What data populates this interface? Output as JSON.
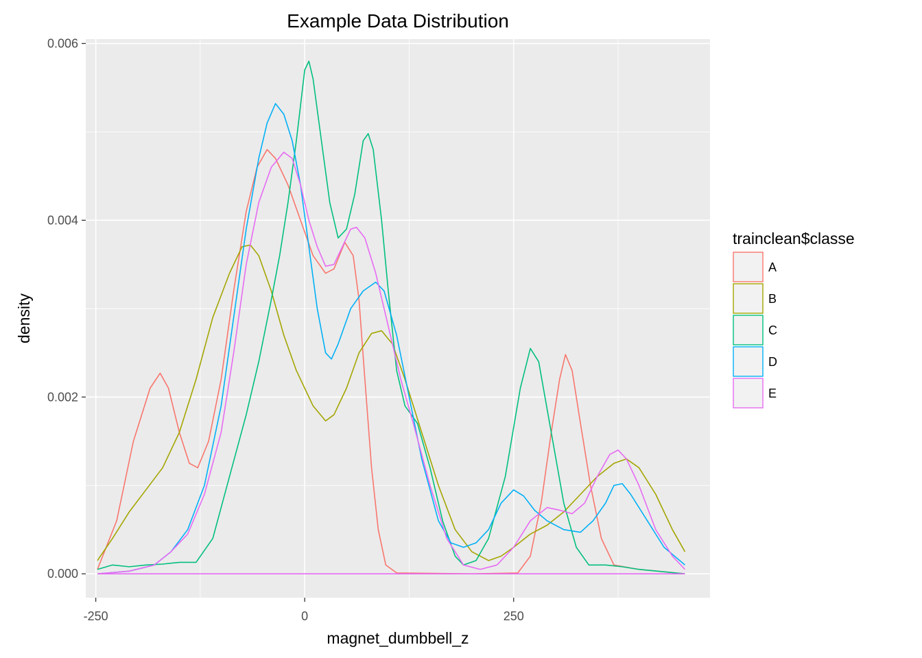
{
  "chart_data": {
    "type": "line",
    "title": "Example Data Distribution",
    "xlabel": "magnet_dumbbell_z",
    "ylabel": "density",
    "xlim": [
      -262,
      485
    ],
    "ylim": [
      -0.00027,
      0.00605
    ],
    "x_ticks": [
      -250,
      0,
      250
    ],
    "x_tick_labels": [
      "-250",
      "0",
      "250"
    ],
    "y_ticks": [
      0.0,
      0.002,
      0.004,
      0.006
    ],
    "y_tick_labels": [
      "0.000",
      "0.002",
      "0.004",
      "0.006"
    ],
    "grid": true,
    "legend": {
      "title": "trainclean$classe",
      "placement": "right"
    },
    "series": [
      {
        "name": "A",
        "color": "#F8766D",
        "points": [
          [
            -248,
            5e-05
          ],
          [
            -225,
            0.0006
          ],
          [
            -205,
            0.0015
          ],
          [
            -185,
            0.0021
          ],
          [
            -173,
            0.00227
          ],
          [
            -163,
            0.0021
          ],
          [
            -150,
            0.0016
          ],
          [
            -138,
            0.00125
          ],
          [
            -128,
            0.0012
          ],
          [
            -115,
            0.0015
          ],
          [
            -100,
            0.0022
          ],
          [
            -85,
            0.0032
          ],
          [
            -70,
            0.0041
          ],
          [
            -57,
            0.0046
          ],
          [
            -45,
            0.0048
          ],
          [
            -35,
            0.0047
          ],
          [
            -20,
            0.0044
          ],
          [
            -5,
            0.004
          ],
          [
            10,
            0.0036
          ],
          [
            25,
            0.0034
          ],
          [
            35,
            0.00345
          ],
          [
            48,
            0.00375
          ],
          [
            58,
            0.0036
          ],
          [
            65,
            0.0031
          ],
          [
            72,
            0.0022
          ],
          [
            80,
            0.0012
          ],
          [
            88,
            0.0005
          ],
          [
            97,
            0.0001
          ],
          [
            110,
            1e-05
          ],
          [
            200,
            0.0
          ],
          [
            255,
            1e-05
          ],
          [
            270,
            0.0002
          ],
          [
            283,
            0.0008
          ],
          [
            295,
            0.0016
          ],
          [
            305,
            0.0022
          ],
          [
            312,
            0.00248
          ],
          [
            320,
            0.0023
          ],
          [
            330,
            0.0017
          ],
          [
            342,
            0.001
          ],
          [
            355,
            0.0004
          ],
          [
            370,
            0.0001
          ],
          [
            400,
            5e-05
          ],
          [
            455,
            0.0
          ]
        ]
      },
      {
        "name": "B",
        "color": "#A3A500",
        "points": [
          [
            -248,
            0.00015
          ],
          [
            -230,
            0.0004
          ],
          [
            -210,
            0.0007
          ],
          [
            -190,
            0.00095
          ],
          [
            -170,
            0.0012
          ],
          [
            -150,
            0.0016
          ],
          [
            -130,
            0.0022
          ],
          [
            -110,
            0.0029
          ],
          [
            -90,
            0.0034
          ],
          [
            -75,
            0.0037
          ],
          [
            -65,
            0.00372
          ],
          [
            -55,
            0.0036
          ],
          [
            -40,
            0.0032
          ],
          [
            -25,
            0.0027
          ],
          [
            -10,
            0.0023
          ],
          [
            0,
            0.0021
          ],
          [
            10,
            0.0019
          ],
          [
            25,
            0.00173
          ],
          [
            35,
            0.0018
          ],
          [
            50,
            0.0021
          ],
          [
            65,
            0.0025
          ],
          [
            80,
            0.00272
          ],
          [
            92,
            0.00275
          ],
          [
            105,
            0.0026
          ],
          [
            120,
            0.0022
          ],
          [
            140,
            0.0016
          ],
          [
            160,
            0.001
          ],
          [
            180,
            0.0005
          ],
          [
            200,
            0.00025
          ],
          [
            220,
            0.00015
          ],
          [
            235,
            0.0002
          ],
          [
            250,
            0.0003
          ],
          [
            270,
            0.00045
          ],
          [
            290,
            0.00055
          ],
          [
            310,
            0.0007
          ],
          [
            330,
            0.0009
          ],
          [
            350,
            0.0011
          ],
          [
            370,
            0.00125
          ],
          [
            385,
            0.0013
          ],
          [
            400,
            0.0012
          ],
          [
            420,
            0.0009
          ],
          [
            440,
            0.0005
          ],
          [
            455,
            0.00025
          ]
        ]
      },
      {
        "name": "C",
        "color": "#00BF7D",
        "points": [
          [
            -248,
            5e-05
          ],
          [
            -230,
            0.0001
          ],
          [
            -210,
            8e-05
          ],
          [
            -190,
            0.0001
          ],
          [
            -170,
            0.00011
          ],
          [
            -150,
            0.00013
          ],
          [
            -130,
            0.00013
          ],
          [
            -110,
            0.0004
          ],
          [
            -90,
            0.0011
          ],
          [
            -70,
            0.0018
          ],
          [
            -55,
            0.0024
          ],
          [
            -40,
            0.0031
          ],
          [
            -30,
            0.0036
          ],
          [
            -20,
            0.0042
          ],
          [
            -10,
            0.0049
          ],
          [
            0,
            0.0057
          ],
          [
            5,
            0.0058
          ],
          [
            10,
            0.0056
          ],
          [
            20,
            0.0049
          ],
          [
            30,
            0.0042
          ],
          [
            40,
            0.0038
          ],
          [
            50,
            0.0039
          ],
          [
            60,
            0.0043
          ],
          [
            70,
            0.0049
          ],
          [
            76,
            0.00498
          ],
          [
            82,
            0.0048
          ],
          [
            92,
            0.004
          ],
          [
            100,
            0.0032
          ],
          [
            110,
            0.0023
          ],
          [
            120,
            0.0019
          ],
          [
            135,
            0.0017
          ],
          [
            150,
            0.0012
          ],
          [
            165,
            0.0006
          ],
          [
            180,
            0.0002
          ],
          [
            190,
            0.0001
          ],
          [
            205,
            0.00015
          ],
          [
            220,
            0.0004
          ],
          [
            240,
            0.0011
          ],
          [
            258,
            0.0021
          ],
          [
            270,
            0.00255
          ],
          [
            280,
            0.0024
          ],
          [
            295,
            0.0016
          ],
          [
            310,
            0.0008
          ],
          [
            325,
            0.0003
          ],
          [
            340,
            0.0001
          ],
          [
            360,
            0.0001
          ],
          [
            380,
            8e-05
          ],
          [
            400,
            5e-05
          ],
          [
            455,
            0.0
          ]
        ]
      },
      {
        "name": "D",
        "color": "#00B0F6",
        "points": [
          [
            -248,
            0.0
          ],
          [
            -210,
            3e-05
          ],
          [
            -180,
            0.0001
          ],
          [
            -160,
            0.00025
          ],
          [
            -140,
            0.0005
          ],
          [
            -120,
            0.001
          ],
          [
            -100,
            0.0019
          ],
          [
            -85,
            0.0029
          ],
          [
            -70,
            0.0039
          ],
          [
            -55,
            0.0047
          ],
          [
            -45,
            0.0051
          ],
          [
            -35,
            0.00532
          ],
          [
            -25,
            0.0052
          ],
          [
            -15,
            0.0049
          ],
          [
            -5,
            0.0044
          ],
          [
            5,
            0.0037
          ],
          [
            15,
            0.003
          ],
          [
            25,
            0.0025
          ],
          [
            32,
            0.00243
          ],
          [
            40,
            0.0026
          ],
          [
            55,
            0.003
          ],
          [
            70,
            0.0032
          ],
          [
            85,
            0.0033
          ],
          [
            95,
            0.0032
          ],
          [
            110,
            0.0027
          ],
          [
            125,
            0.002
          ],
          [
            140,
            0.0013
          ],
          [
            160,
            0.0006
          ],
          [
            175,
            0.00035
          ],
          [
            190,
            0.0003
          ],
          [
            205,
            0.00035
          ],
          [
            220,
            0.0005
          ],
          [
            235,
            0.0008
          ],
          [
            250,
            0.00095
          ],
          [
            262,
            0.00088
          ],
          [
            275,
            0.00072
          ],
          [
            290,
            0.0006
          ],
          [
            310,
            0.0005
          ],
          [
            330,
            0.00047
          ],
          [
            345,
            0.0006
          ],
          [
            360,
            0.0008
          ],
          [
            370,
            0.001
          ],
          [
            380,
            0.00102
          ],
          [
            390,
            0.0009
          ],
          [
            410,
            0.0006
          ],
          [
            430,
            0.0003
          ],
          [
            455,
            0.0001
          ]
        ]
      },
      {
        "name": "E",
        "color": "#E76BF3",
        "points": [
          [
            -248,
            0.0
          ],
          [
            -210,
            3e-05
          ],
          [
            -180,
            0.0001
          ],
          [
            -160,
            0.00025
          ],
          [
            -140,
            0.00045
          ],
          [
            -120,
            0.0009
          ],
          [
            -100,
            0.0016
          ],
          [
            -85,
            0.0025
          ],
          [
            -70,
            0.0035
          ],
          [
            -55,
            0.0042
          ],
          [
            -40,
            0.0046
          ],
          [
            -25,
            0.00477
          ],
          [
            -15,
            0.0047
          ],
          [
            -5,
            0.0044
          ],
          [
            5,
            0.004
          ],
          [
            15,
            0.0037
          ],
          [
            25,
            0.00348
          ],
          [
            35,
            0.0035
          ],
          [
            45,
            0.0037
          ],
          [
            55,
            0.0039
          ],
          [
            62,
            0.00392
          ],
          [
            72,
            0.0038
          ],
          [
            85,
            0.0034
          ],
          [
            100,
            0.0028
          ],
          [
            115,
            0.0022
          ],
          [
            130,
            0.0017
          ],
          [
            150,
            0.001
          ],
          [
            170,
            0.0004
          ],
          [
            190,
            0.0001
          ],
          [
            210,
            5e-05
          ],
          [
            230,
            0.0001
          ],
          [
            250,
            0.0003
          ],
          [
            270,
            0.0006
          ],
          [
            290,
            0.00075
          ],
          [
            305,
            0.00072
          ],
          [
            320,
            0.00068
          ],
          [
            335,
            0.0008
          ],
          [
            350,
            0.0011
          ],
          [
            365,
            0.00135
          ],
          [
            375,
            0.0014
          ],
          [
            385,
            0.0013
          ],
          [
            400,
            0.001
          ],
          [
            420,
            0.0005
          ],
          [
            440,
            0.0002
          ],
          [
            455,
            5e-05
          ]
        ]
      },
      {
        "name": "",
        "color": "#E76BF3",
        "note_baseline": true,
        "points": [
          [
            -248,
            0.0
          ],
          [
            455,
            0.0
          ]
        ]
      }
    ]
  }
}
